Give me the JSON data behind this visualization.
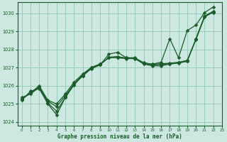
{
  "title": "Graphe pression niveau de la mer (hPa)",
  "background_color": "#cce8e0",
  "grid_color": "#99ccbb",
  "line_color": "#1a5c2a",
  "xlim": [
    -0.5,
    23
  ],
  "ylim": [
    1023.8,
    1030.6
  ],
  "yticks": [
    1024,
    1025,
    1026,
    1027,
    1028,
    1029,
    1030
  ],
  "xticks": [
    0,
    1,
    2,
    3,
    4,
    5,
    6,
    7,
    8,
    9,
    10,
    11,
    12,
    13,
    14,
    15,
    16,
    17,
    18,
    19,
    20,
    21,
    22,
    23
  ],
  "series": [
    [
      1025.2,
      1025.7,
      1025.85,
      1025.0,
      1024.4,
      1025.35,
      1026.05,
      1026.55,
      1026.95,
      1027.15,
      1027.75,
      1027.85,
      1027.55,
      1027.55,
      1027.25,
      1027.2,
      1027.3,
      1028.6,
      1027.55,
      1029.05,
      1029.35,
      1030.05,
      1030.35
    ],
    [
      1025.35,
      1025.55,
      1025.9,
      1025.15,
      1024.85,
      1025.45,
      1026.1,
      1026.6,
      1027.0,
      1027.2,
      1027.55,
      1027.55,
      1027.5,
      1027.5,
      1027.2,
      1027.1,
      1027.1,
      1027.2,
      1027.25,
      1027.35,
      1028.6,
      1029.85,
      1030.05
    ],
    [
      1025.25,
      1025.6,
      1025.95,
      1025.05,
      1024.6,
      1025.35,
      1026.1,
      1026.55,
      1026.98,
      1027.15,
      1027.58,
      1027.62,
      1027.52,
      1027.52,
      1027.25,
      1027.15,
      1027.18,
      1027.22,
      1027.28,
      1027.38,
      1028.55,
      1029.8,
      1030.08
    ],
    [
      1025.3,
      1025.6,
      1026.0,
      1025.2,
      1025.0,
      1025.55,
      1026.2,
      1026.65,
      1027.02,
      1027.2,
      1027.55,
      1027.55,
      1027.55,
      1027.52,
      1027.28,
      1027.18,
      1027.22,
      1027.25,
      1027.3,
      1027.4,
      1028.57,
      1029.85,
      1030.12
    ]
  ],
  "markersize": 2.5
}
